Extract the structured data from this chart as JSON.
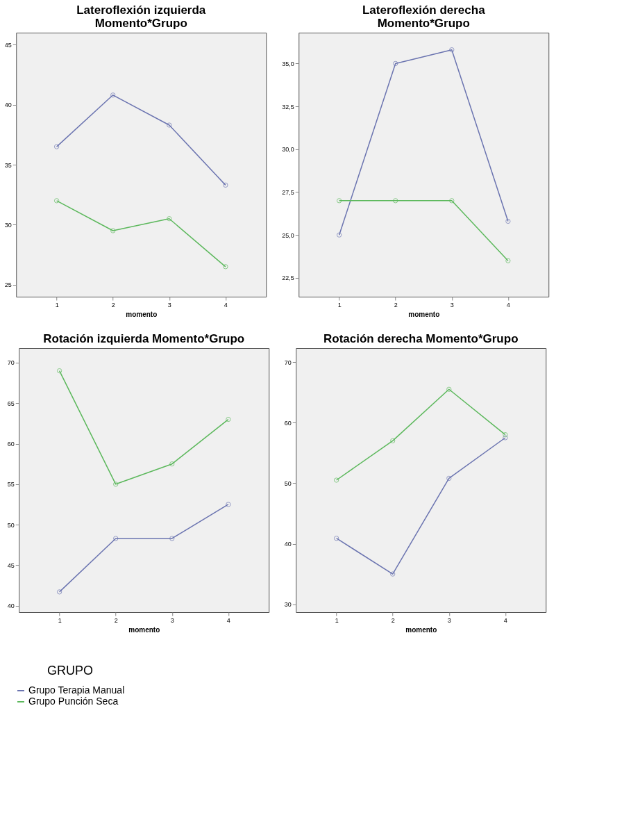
{
  "chart_data": [
    {
      "type": "line",
      "title": "Lateroflexión izquierda\nMomento*Grupo",
      "xlabel": "momento",
      "x": [
        1,
        2,
        3,
        4
      ],
      "xlim": [
        0.28,
        4.72
      ],
      "xticks": [
        1,
        2,
        3,
        4
      ],
      "ylim": [
        24,
        46
      ],
      "yticks": [
        25,
        30,
        35,
        40,
        45
      ],
      "grid": false,
      "marker": "circle",
      "line_style": "solid",
      "series": [
        {
          "color": "#6b74b0",
          "values": [
            36.5,
            40.8,
            38.3,
            33.3
          ]
        },
        {
          "color": "#5cb85c",
          "values": [
            32.0,
            29.5,
            30.5,
            26.5
          ]
        }
      ]
    },
    {
      "type": "line",
      "title": "Lateroflexión derecha\nMomento*Grupo",
      "xlabel": "momento",
      "x": [
        1,
        2,
        3,
        4
      ],
      "xlim": [
        0.28,
        4.72
      ],
      "xticks": [
        1,
        2,
        3,
        4
      ],
      "ylim": [
        21.4,
        36.8
      ],
      "yticks": [
        {
          "value": 22.5,
          "label": "22,5"
        },
        {
          "value": 25,
          "label": "25,0"
        },
        {
          "value": 27.5,
          "label": "27,5"
        },
        {
          "value": 30,
          "label": "30,0"
        },
        {
          "value": 32.5,
          "label": "32,5"
        },
        {
          "value": 35,
          "label": "35,0"
        }
      ],
      "grid": false,
      "marker": "circle",
      "line_style": "solid",
      "series": [
        {
          "color": "#6b74b0",
          "values": [
            25.0,
            35.0,
            35.8,
            25.8
          ]
        },
        {
          "color": "#5cb85c",
          "values": [
            27.0,
            27.0,
            27.0,
            23.5
          ]
        }
      ]
    },
    {
      "type": "line",
      "title": "Rotación izquierda Momento*Grupo",
      "xlabel": "momento",
      "x": [
        1,
        2,
        3,
        4
      ],
      "xlim": [
        0.28,
        4.72
      ],
      "xticks": [
        1,
        2,
        3,
        4
      ],
      "ylim": [
        39.2,
        71.8
      ],
      "yticks": [
        40,
        45,
        50,
        55,
        60,
        65,
        70
      ],
      "grid": false,
      "marker": "circle",
      "line_style": "solid",
      "series": [
        {
          "color": "#6b74b0",
          "values": [
            41.7,
            48.3,
            48.3,
            52.5
          ]
        },
        {
          "color": "#5cb85c",
          "values": [
            69.0,
            55.0,
            57.5,
            63.0
          ]
        }
      ]
    },
    {
      "type": "line",
      "title": "Rotación derecha Momento*Grupo",
      "xlabel": "momento",
      "x": [
        1,
        2,
        3,
        4
      ],
      "xlim": [
        0.28,
        4.72
      ],
      "xticks": [
        1,
        2,
        3,
        4
      ],
      "ylim": [
        28.7,
        72.3
      ],
      "yticks": [
        30,
        40,
        50,
        60,
        70
      ],
      "grid": false,
      "marker": "circle",
      "line_style": "solid",
      "legend": "bottom",
      "legend_title": "GRUPO",
      "series": [
        {
          "name": "Grupo Terapia Manual",
          "color": "#6b74b0",
          "values": [
            40.9,
            35.0,
            50.8,
            57.5
          ]
        },
        {
          "name": "Grupo Punción Seca",
          "color": "#5cb85c",
          "values": [
            50.5,
            57.0,
            65.5,
            58.0
          ]
        }
      ]
    }
  ]
}
